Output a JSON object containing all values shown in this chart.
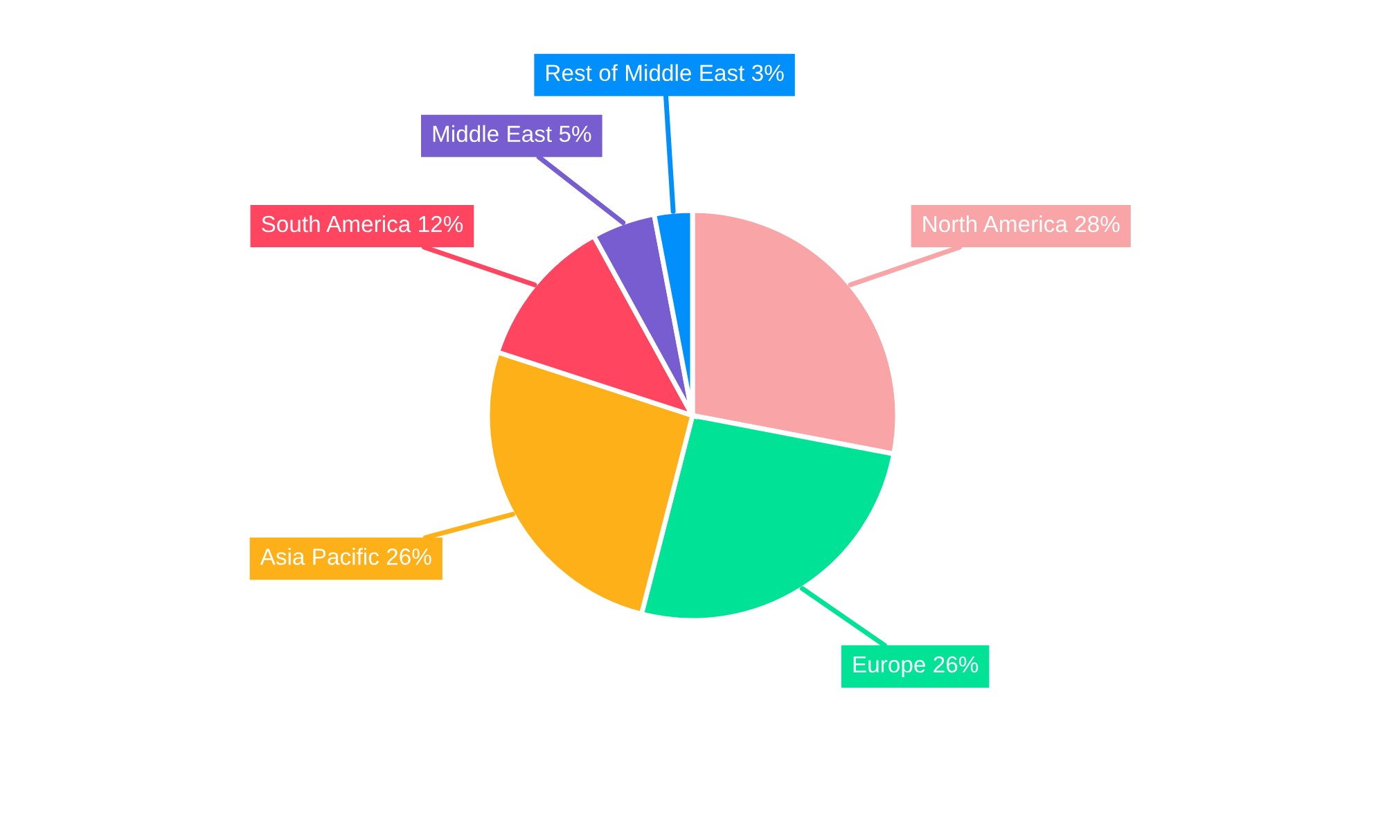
{
  "chart_data": {
    "type": "pie",
    "categories": [
      "North America",
      "Europe",
      "Asia Pacific",
      "South America",
      "Middle East",
      "Rest of Middle East"
    ],
    "values": [
      28,
      26,
      26,
      12,
      5,
      3
    ],
    "value_labels": [
      "28%",
      "26%",
      "26%",
      "12%",
      "5%",
      "3%"
    ],
    "colors": [
      "#f9a5a8",
      "#00e396",
      "#feb019",
      "#ff4560",
      "#775dd0",
      "#008ffb"
    ],
    "legend": false
  }
}
